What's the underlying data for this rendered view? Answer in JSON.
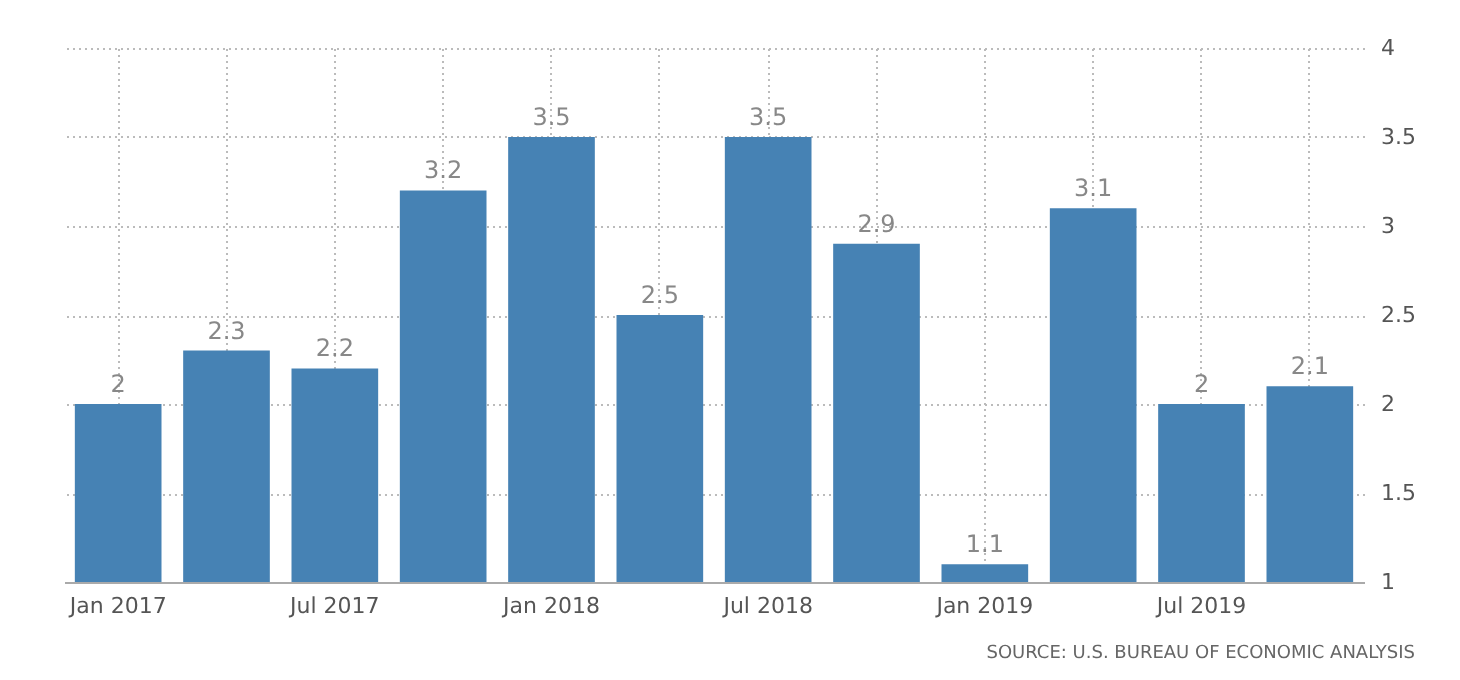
{
  "chart_data": {
    "type": "bar",
    "categories": [
      "Jan 2017",
      null,
      "Jul 2017",
      null,
      "Jan 2018",
      null,
      "Jul 2018",
      null,
      "Jan 2019",
      null,
      "Jul 2019",
      null
    ],
    "values": [
      2,
      2.3,
      2.2,
      3.2,
      3.5,
      2.5,
      3.5,
      2.9,
      1.1,
      3.1,
      2,
      2.1
    ],
    "color": "#4682b4",
    "ylim": [
      1,
      4
    ],
    "yticks": [
      1,
      1.5,
      2,
      2.5,
      3,
      3.5,
      4
    ],
    "grid": true,
    "data_labels": true,
    "annotations": [
      "SOURCE: U.S. BUREAU OF ECONOMIC ANALYSIS"
    ]
  }
}
